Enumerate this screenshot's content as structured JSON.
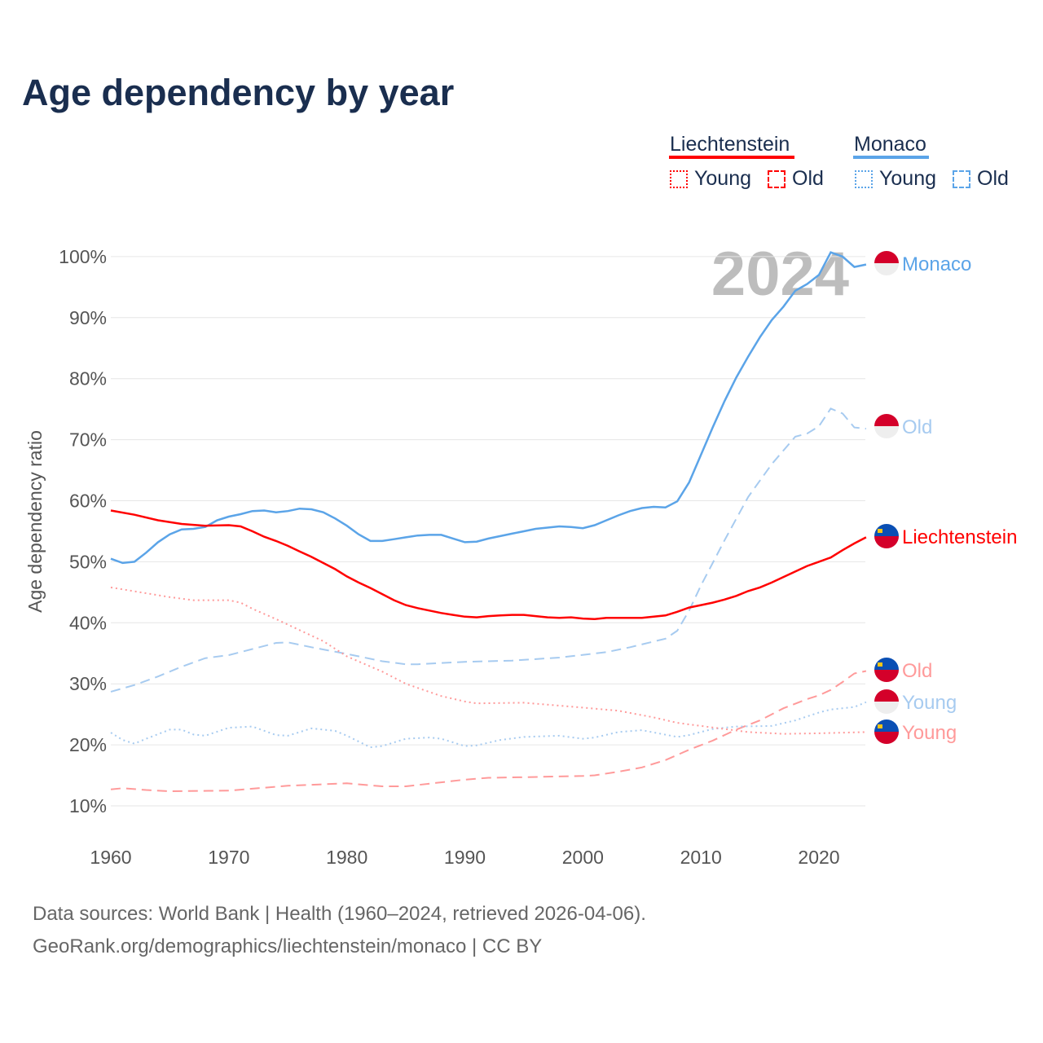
{
  "title": "Age dependency by year",
  "year_watermark": "2024",
  "legend": {
    "groups": [
      {
        "name": "Liechtenstein",
        "color": "#ff0000",
        "light": "#ff9a9a",
        "young": "Young",
        "old": "Old"
      },
      {
        "name": "Monaco",
        "color": "#5ba4e8",
        "light": "#a7cbf0",
        "young": "Young",
        "old": "Old"
      }
    ]
  },
  "footer": {
    "line1": "Data sources: World Bank | Health (1960–2024, retrieved 2026-04-06).",
    "line2": "GeoRank.org/demographics/liechtenstein/monaco | CC BY"
  },
  "chart_data": {
    "type": "line",
    "title": "Age dependency by year",
    "xlabel": "",
    "ylabel": "Age dependency ratio",
    "xlim": [
      1960,
      2024
    ],
    "ylim": [
      5,
      102
    ],
    "x_ticks": [
      "1960",
      "1970",
      "1980",
      "1990",
      "2000",
      "2010",
      "2020"
    ],
    "y_ticks": [
      "10%",
      "20%",
      "30%",
      "40%",
      "50%",
      "60%",
      "70%",
      "80%",
      "90%",
      "100%"
    ],
    "grid": true,
    "legend": "top-right",
    "series": [
      {
        "name": "Monaco",
        "label": "Monaco",
        "style": "solid",
        "color": "#5ba4e8",
        "points": [
          [
            1960,
            50.5
          ],
          [
            1961,
            49.8
          ],
          [
            1962,
            50
          ],
          [
            1963,
            51.5
          ],
          [
            1964,
            53.2
          ],
          [
            1965,
            54.5
          ],
          [
            1966,
            55.3
          ],
          [
            1967,
            55.4
          ],
          [
            1968,
            55.7
          ],
          [
            1969,
            56.8
          ],
          [
            1970,
            57.4
          ],
          [
            1971,
            57.8
          ],
          [
            1972,
            58.3
          ],
          [
            1973,
            58.4
          ],
          [
            1974,
            58.1
          ],
          [
            1975,
            58.3
          ],
          [
            1976,
            58.7
          ],
          [
            1977,
            58.6
          ],
          [
            1978,
            58.1
          ],
          [
            1979,
            57.1
          ],
          [
            1980,
            55.9
          ],
          [
            1981,
            54.5
          ],
          [
            1982,
            53.4
          ],
          [
            1983,
            53.4
          ],
          [
            1984,
            53.7
          ],
          [
            1985,
            54.0
          ],
          [
            1986,
            54.3
          ],
          [
            1987,
            54.4
          ],
          [
            1988,
            54.4
          ],
          [
            1989,
            53.8
          ],
          [
            1990,
            53.2
          ],
          [
            1991,
            53.3
          ],
          [
            1992,
            53.8
          ],
          [
            1993,
            54.2
          ],
          [
            1994,
            54.6
          ],
          [
            1995,
            55.0
          ],
          [
            1996,
            55.4
          ],
          [
            1997,
            55.6
          ],
          [
            1998,
            55.8
          ],
          [
            1999,
            55.7
          ],
          [
            2000,
            55.5
          ],
          [
            2001,
            56.0
          ],
          [
            2002,
            56.8
          ],
          [
            2003,
            57.6
          ],
          [
            2004,
            58.3
          ],
          [
            2005,
            58.8
          ],
          [
            2006,
            59.0
          ],
          [
            2007,
            58.9
          ],
          [
            2008,
            59.9
          ],
          [
            2009,
            63.0
          ],
          [
            2010,
            67.5
          ],
          [
            2011,
            72.0
          ],
          [
            2012,
            76.3
          ],
          [
            2013,
            80.2
          ],
          [
            2014,
            83.6
          ],
          [
            2015,
            86.8
          ],
          [
            2016,
            89.6
          ],
          [
            2017,
            91.8
          ],
          [
            2018,
            94.4
          ],
          [
            2019,
            95.5
          ],
          [
            2020,
            97.0
          ],
          [
            2021,
            100.7
          ],
          [
            2022,
            100.0
          ],
          [
            2023,
            98.3
          ],
          [
            2024,
            98.7
          ]
        ]
      },
      {
        "name": "Monaco Old",
        "label": "Old",
        "style": "dashed",
        "color": "#a7cbf0",
        "points": [
          [
            1960,
            28.7
          ],
          [
            1962,
            29.8
          ],
          [
            1964,
            31.2
          ],
          [
            1966,
            32.8
          ],
          [
            1968,
            34.2
          ],
          [
            1970,
            34.7
          ],
          [
            1972,
            35.7
          ],
          [
            1974,
            36.7
          ],
          [
            1975,
            36.8
          ],
          [
            1977,
            36.0
          ],
          [
            1980,
            34.9
          ],
          [
            1983,
            33.7
          ],
          [
            1985,
            33.2
          ],
          [
            1986,
            33.2
          ],
          [
            1990,
            33.6
          ],
          [
            1994,
            33.8
          ],
          [
            1998,
            34.3
          ],
          [
            2002,
            35.2
          ],
          [
            2004,
            36.0
          ],
          [
            2007,
            37.4
          ],
          [
            2008,
            38.7
          ],
          [
            2009,
            42.0
          ],
          [
            2010,
            46.1
          ],
          [
            2012,
            53.5
          ],
          [
            2014,
            60.6
          ],
          [
            2016,
            66.0
          ],
          [
            2018,
            70.5
          ],
          [
            2019,
            71.0
          ],
          [
            2020,
            72.2
          ],
          [
            2021,
            75.1
          ],
          [
            2022,
            74.3
          ],
          [
            2023,
            72.0
          ],
          [
            2024,
            71.8
          ]
        ]
      },
      {
        "name": "Liechtenstein",
        "label": "Liechtenstein",
        "style": "solid",
        "color": "#ff0000",
        "points": [
          [
            1960,
            58.4
          ],
          [
            1962,
            57.7
          ],
          [
            1964,
            56.8
          ],
          [
            1966,
            56.2
          ],
          [
            1968,
            55.9
          ],
          [
            1970,
            56.0
          ],
          [
            1971,
            55.8
          ],
          [
            1972,
            55.0
          ],
          [
            1973,
            54.1
          ],
          [
            1974,
            53.4
          ],
          [
            1975,
            52.6
          ],
          [
            1976,
            51.7
          ],
          [
            1977,
            50.8
          ],
          [
            1978,
            49.8
          ],
          [
            1979,
            48.8
          ],
          [
            1980,
            47.6
          ],
          [
            1981,
            46.6
          ],
          [
            1982,
            45.7
          ],
          [
            1983,
            44.7
          ],
          [
            1984,
            43.7
          ],
          [
            1985,
            42.9
          ],
          [
            1986,
            42.4
          ],
          [
            1987,
            42.0
          ],
          [
            1988,
            41.6
          ],
          [
            1989,
            41.3
          ],
          [
            1990,
            41.0
          ],
          [
            1991,
            40.9
          ],
          [
            1992,
            41.1
          ],
          [
            1993,
            41.2
          ],
          [
            1994,
            41.3
          ],
          [
            1995,
            41.3
          ],
          [
            1996,
            41.1
          ],
          [
            1997,
            40.9
          ],
          [
            1998,
            40.8
          ],
          [
            1999,
            40.9
          ],
          [
            2000,
            40.7
          ],
          [
            2001,
            40.6
          ],
          [
            2002,
            40.8
          ],
          [
            2005,
            40.8
          ],
          [
            2007,
            41.2
          ],
          [
            2008,
            41.8
          ],
          [
            2009,
            42.5
          ],
          [
            2010,
            42.9
          ],
          [
            2011,
            43.3
          ],
          [
            2012,
            43.8
          ],
          [
            2013,
            44.4
          ],
          [
            2014,
            45.2
          ],
          [
            2015,
            45.8
          ],
          [
            2016,
            46.6
          ],
          [
            2017,
            47.5
          ],
          [
            2018,
            48.4
          ],
          [
            2019,
            49.3
          ],
          [
            2020,
            50.0
          ],
          [
            2021,
            50.7
          ],
          [
            2022,
            51.9
          ],
          [
            2023,
            53.0
          ],
          [
            2024,
            54.0
          ]
        ]
      },
      {
        "name": "Liechtenstein Old",
        "label": "Old",
        "style": "dashed",
        "color": "#ff9a9a",
        "points": [
          [
            1960,
            12.7
          ],
          [
            1961,
            12.9
          ],
          [
            1963,
            12.6
          ],
          [
            1965,
            12.4
          ],
          [
            1970,
            12.5
          ],
          [
            1975,
            13.3
          ],
          [
            1980,
            13.7
          ],
          [
            1983,
            13.2
          ],
          [
            1985,
            13.2
          ],
          [
            1990,
            14.3
          ],
          [
            1992,
            14.6
          ],
          [
            1995,
            14.7
          ],
          [
            2000,
            14.9
          ],
          [
            2001,
            15.0
          ],
          [
            2003,
            15.6
          ],
          [
            2005,
            16.3
          ],
          [
            2007,
            17.5
          ],
          [
            2009,
            19.2
          ],
          [
            2011,
            20.7
          ],
          [
            2013,
            22.5
          ],
          [
            2015,
            24.0
          ],
          [
            2017,
            26.0
          ],
          [
            2019,
            27.5
          ],
          [
            2020,
            28.1
          ],
          [
            2021,
            29.0
          ],
          [
            2022,
            30.3
          ],
          [
            2023,
            31.7
          ],
          [
            2024,
            32.1
          ]
        ]
      },
      {
        "name": "Monaco Young",
        "label": "Young",
        "style": "dotted",
        "color": "#a7cbf0",
        "points": [
          [
            1960,
            22
          ],
          [
            1961,
            20.8
          ],
          [
            1962,
            20.2
          ],
          [
            1963,
            21.0
          ],
          [
            1965,
            22.5
          ],
          [
            1966,
            22.5
          ],
          [
            1967,
            21.7
          ],
          [
            1968,
            21.5
          ],
          [
            1970,
            22.8
          ],
          [
            1972,
            23.0
          ],
          [
            1974,
            21.6
          ],
          [
            1975,
            21.5
          ],
          [
            1977,
            22.7
          ],
          [
            1979,
            22.3
          ],
          [
            1980,
            21.5
          ],
          [
            1982,
            19.6
          ],
          [
            1983,
            19.8
          ],
          [
            1985,
            21.0
          ],
          [
            1987,
            21.2
          ],
          [
            1988,
            21.0
          ],
          [
            1990,
            19.8
          ],
          [
            1991,
            19.9
          ],
          [
            1993,
            20.8
          ],
          [
            1995,
            21.3
          ],
          [
            1998,
            21.5
          ],
          [
            2000,
            21.0
          ],
          [
            2001,
            21.2
          ],
          [
            2003,
            22.1
          ],
          [
            2005,
            22.4
          ],
          [
            2008,
            21.3
          ],
          [
            2009,
            21.6
          ],
          [
            2011,
            22.6
          ],
          [
            2013,
            23.0
          ],
          [
            2016,
            23.1
          ],
          [
            2018,
            24.0
          ],
          [
            2020,
            25.3
          ],
          [
            2021,
            25.8
          ],
          [
            2023,
            26.2
          ],
          [
            2024,
            27.0
          ]
        ]
      },
      {
        "name": "Liechtenstein Young",
        "label": "Young",
        "style": "dotted",
        "color": "#ff9a9a",
        "points": [
          [
            1960,
            45.8
          ],
          [
            1965,
            44.2
          ],
          [
            1967,
            43.7
          ],
          [
            1970,
            43.7
          ],
          [
            1971,
            43.3
          ],
          [
            1972,
            42.3
          ],
          [
            1974,
            40.6
          ],
          [
            1976,
            38.8
          ],
          [
            1978,
            37.0
          ],
          [
            1980,
            34.5
          ],
          [
            1983,
            32.0
          ],
          [
            1985,
            30.0
          ],
          [
            1988,
            28.0
          ],
          [
            1990,
            27.1
          ],
          [
            1991,
            26.8
          ],
          [
            1995,
            26.9
          ],
          [
            2000,
            26.1
          ],
          [
            2003,
            25.6
          ],
          [
            2006,
            24.5
          ],
          [
            2008,
            23.6
          ],
          [
            2010,
            23.1
          ],
          [
            2012,
            22.6
          ],
          [
            2014,
            22.1
          ],
          [
            2017,
            21.8
          ],
          [
            2020,
            21.9
          ],
          [
            2024,
            22.1
          ]
        ]
      }
    ]
  }
}
